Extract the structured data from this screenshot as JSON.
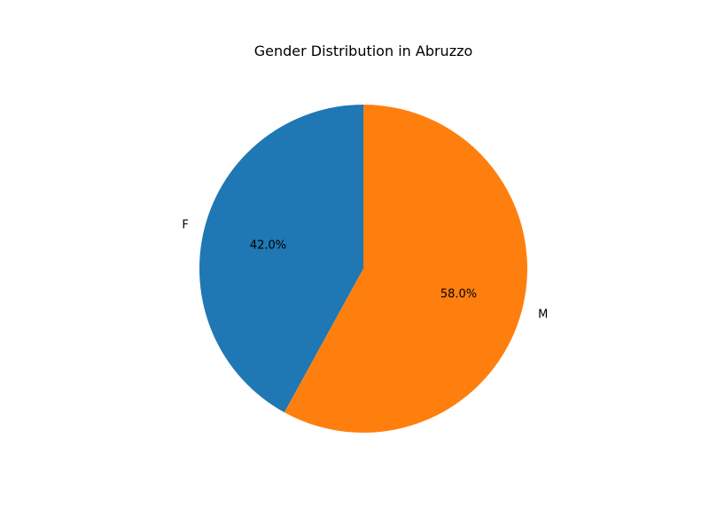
{
  "chart_data": {
    "type": "pie",
    "title": "Gender Distribution in Abruzzo",
    "slices": [
      {
        "label": "F",
        "value": 42.0,
        "pct_label": "42.0%",
        "color": "#1f77b4"
      },
      {
        "label": "M",
        "value": 58.0,
        "pct_label": "58.0%",
        "color": "#ff7f0e"
      }
    ],
    "start_angle_deg": 90,
    "direction": "counterclockwise"
  }
}
